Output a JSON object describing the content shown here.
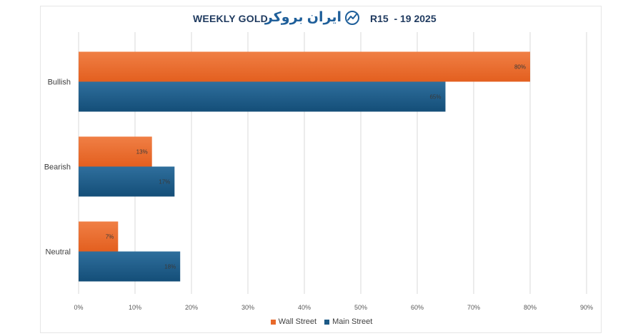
{
  "header": {
    "title_left": "WEEKLY GOLD",
    "brand_text": "ایران بروکر",
    "title_right": "R15  - 19 2025"
  },
  "colors": {
    "wall_street": "#e8692a",
    "wall_street_light": "#f08a55",
    "main_street": "#1d5a86",
    "main_street_light": "#2a6d9c",
    "grid": "#d9d9d9",
    "axis_text": "#595959",
    "brand": "#1f5f9a"
  },
  "chart_data": {
    "type": "bar",
    "orientation": "horizontal",
    "categories": [
      "Bullish",
      "Bearish",
      "Neutral"
    ],
    "series": [
      {
        "name": "Wall Street",
        "values": [
          80,
          13,
          7
        ],
        "labels": [
          "80%",
          "13%",
          "7%"
        ]
      },
      {
        "name": "Main Street",
        "values": [
          65,
          17,
          18
        ],
        "labels": [
          "65%",
          "17%",
          "18%"
        ]
      }
    ],
    "x_ticks": [
      "0%",
      "10%",
      "20%",
      "30%",
      "40%",
      "50%",
      "60%",
      "70%",
      "80%",
      "90%"
    ],
    "xlim": [
      0,
      90
    ],
    "grid": true,
    "legend_position": "bottom"
  }
}
